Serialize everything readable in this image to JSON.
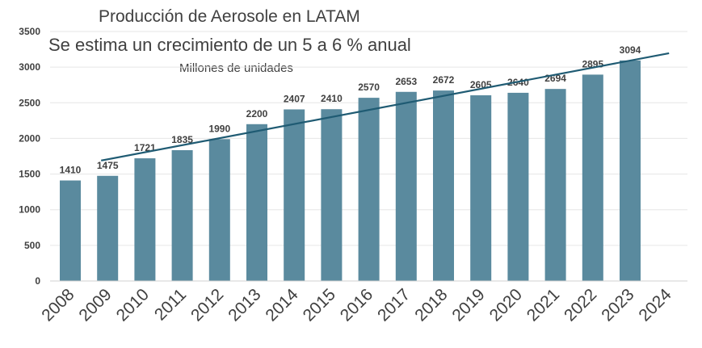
{
  "chart_data": {
    "type": "bar",
    "title": "Producción de Aerosole en LATAM",
    "subtitle": "Se estima un crecimiento de un 5 a 6 % anual",
    "units_label": "Millones de unidades",
    "categories": [
      "2008",
      "2009",
      "2010",
      "2011",
      "2012",
      "2013",
      "2014",
      "2015",
      "2016",
      "2017",
      "2018",
      "2019",
      "2020",
      "2021",
      "2022",
      "2023",
      "2024"
    ],
    "values": [
      1410,
      1475,
      1721,
      1835,
      1990,
      2200,
      2407,
      2410,
      2570,
      2653,
      2672,
      2605,
      2640,
      2694,
      2895,
      3094,
      null
    ],
    "ylim": [
      0,
      3500
    ],
    "yticks": [
      0,
      500,
      1000,
      1500,
      2000,
      2500,
      3000,
      3500
    ],
    "trendline": {
      "type": "linear",
      "x_start": "2009",
      "y_start": 1690,
      "x_end": "2024",
      "y_end": 3195
    },
    "grid": true,
    "legend": "none",
    "bar_color": "#5a8a9e",
    "trend_color": "#1f5b73"
  }
}
